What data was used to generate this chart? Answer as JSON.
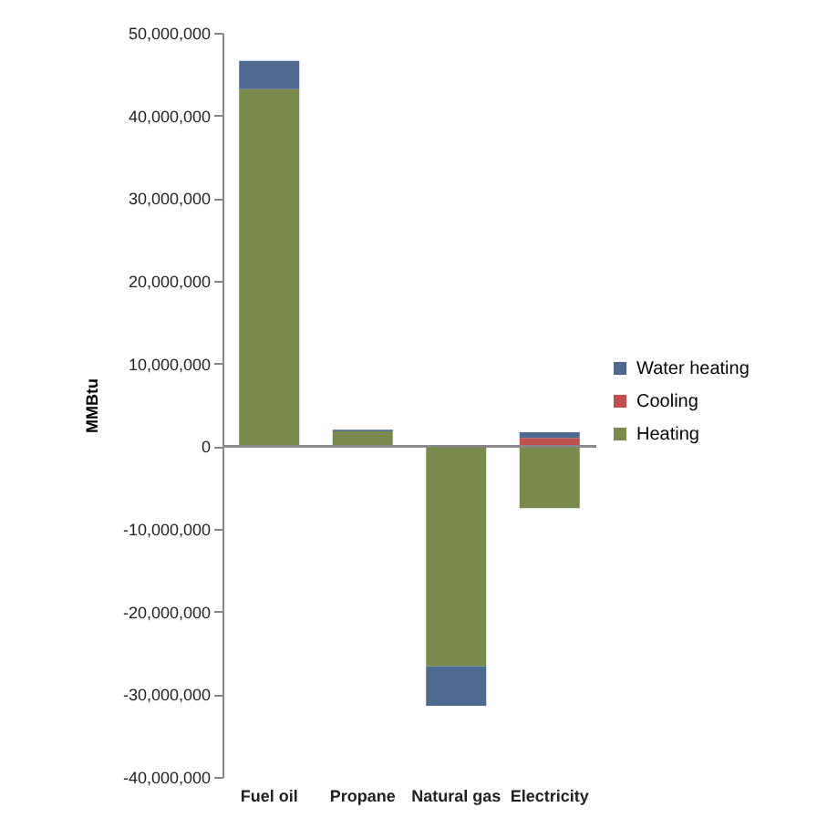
{
  "chart_data": {
    "type": "bar",
    "stacked": true,
    "ylabel": "MMBtu",
    "legend": "right",
    "categories": [
      "Fuel oil",
      "Propane",
      "Natural gas",
      "Electricity"
    ],
    "series": [
      {
        "name": "Heating",
        "color": "#7a8a4c",
        "values": [
          43200000,
          1800000,
          -26600000,
          -7500000
        ]
      },
      {
        "name": "Cooling",
        "color": "#c0504d",
        "values": [
          null,
          null,
          null,
          1000000
        ]
      },
      {
        "name": "Water heating",
        "color": "#4f6a8f",
        "values": [
          3400000,
          200000,
          -4800000,
          700000
        ]
      }
    ],
    "ylim": [
      -40000000,
      50000000
    ],
    "yticks": [
      {
        "value": -40000000,
        "label": "-40,000,000"
      },
      {
        "value": -30000000,
        "label": "-30,000,000"
      },
      {
        "value": -20000000,
        "label": "-20,000,000"
      },
      {
        "value": -10000000,
        "label": "-10,000,000"
      },
      {
        "value": 0,
        "label": "0"
      },
      {
        "value": 10000000,
        "label": "10,000,000"
      },
      {
        "value": 20000000,
        "label": "20,000,000"
      },
      {
        "value": 30000000,
        "label": "30,000,000"
      },
      {
        "value": 40000000,
        "label": "40,000,000"
      },
      {
        "value": 50000000,
        "label": "50,000,000"
      }
    ]
  }
}
